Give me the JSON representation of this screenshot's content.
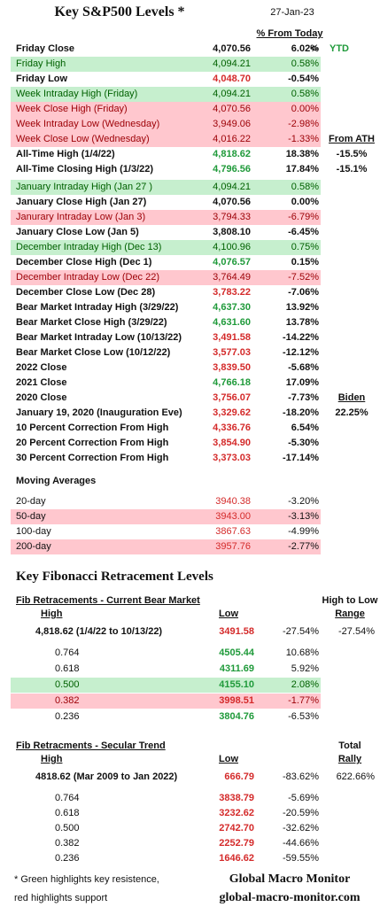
{
  "header": {
    "title": "Key S&P500 Levels *",
    "date": "27-Jan-23",
    "column_header": "% From Today"
  },
  "levels": [
    {
      "label": "Friday Close",
      "value": "4,070.56",
      "change": "6.02%",
      "notes": [
        "<-",
        "YTD"
      ]
    },
    {
      "label": "Friday High",
      "value": "4,094.21",
      "change": "0.58%",
      "highlight": "green"
    },
    {
      "label": "Friday Low",
      "value": "4,048.70",
      "change": "-0.54%",
      "value_color": "red"
    },
    {
      "label": "Week Intraday High (Friday)",
      "value": "4,094.21",
      "change": "0.58%",
      "highlight": "green"
    },
    {
      "label": "Week Close High  (Friday)",
      "value": "4,070.56",
      "change": "0.00%",
      "highlight": "red"
    },
    {
      "label": "Week Intraday Low (Wednesday)",
      "value": "3,949.06",
      "change": "-2.98%",
      "highlight": "red"
    },
    {
      "label": "Week Close Low (Wednesday)",
      "value": "4,016.22",
      "change": "-1.33%",
      "highlight": "red",
      "notes": [
        "From ATH"
      ],
      "note_underline": true
    },
    {
      "label": "All-Time High (1/4/22)",
      "value": "4,818.62",
      "change": "18.38%",
      "value_color": "green",
      "notes": [
        "-15.5%"
      ]
    },
    {
      "label": "All-Time Closing High (1/3/22)",
      "value": "4,796.56",
      "change": "17.84%",
      "value_color": "green",
      "notes": [
        "-15.1%"
      ]
    },
    {
      "label": "January Intraday High (Jan 27 )",
      "value": "4,094.21",
      "change": "0.58%",
      "highlight": "green"
    },
    {
      "label": "January Close High  (Jan 27)",
      "value": "4,070.56",
      "change": "0.00%"
    },
    {
      "label": "Janurary Intraday Low (Jan 3)",
      "value": "3,794.33",
      "change": "-6.79%",
      "highlight": "red"
    },
    {
      "label": "January Close Low  (Jan 5)",
      "value": "3,808.10",
      "change": "-6.45%"
    },
    {
      "label": "December Intraday High (Dec 13)",
      "value": "4,100.96",
      "change": "0.75%",
      "highlight": "green"
    },
    {
      "label": "December Close High  (Dec 1)",
      "value": "4,076.57",
      "change": "0.15%",
      "value_color": "green"
    },
    {
      "label": "December Intraday Low (Dec 22)",
      "value": "3,764.49",
      "change": "-7.52%",
      "highlight": "red"
    },
    {
      "label": "December Close Low  (Dec 28)",
      "value": "3,783.22",
      "change": "-7.06%",
      "value_color": "red"
    },
    {
      "label": "Bear Market Intraday High (3/29/22)",
      "value": "4,637.30",
      "change": "13.92%",
      "value_color": "green"
    },
    {
      "label": "Bear Market Close High (3/29/22)",
      "value": "4,631.60",
      "change": "13.78%",
      "value_color": "green"
    },
    {
      "label": "Bear Market Intraday Low (10/13/22)",
      "value": "3,491.58",
      "change": "-14.22%",
      "value_color": "red"
    },
    {
      "label": "Bear Market Close Low (10/12/22)",
      "value": "3,577.03",
      "change": "-12.12%",
      "value_color": "red"
    },
    {
      "label": "2022 Close",
      "value": "3,839.50",
      "change": "-5.68%",
      "value_color": "red"
    },
    {
      "label": "2021 Close",
      "value": "4,766.18",
      "change": "17.09%",
      "value_color": "green"
    },
    {
      "label": "2020 Close",
      "value": "3,756.07",
      "change": "-7.73%",
      "value_color": "red",
      "notes": [
        "Biden"
      ],
      "note_underline": true
    },
    {
      "label": "January 19, 2020 (Inauguration Eve)",
      "value": "3,329.62",
      "change": "-18.20%",
      "value_color": "red",
      "notes": [
        "22.25%"
      ]
    },
    {
      "label": "10 Percent Correction From High",
      "value": "4,336.76",
      "change": "6.54%",
      "value_color": "red"
    },
    {
      "label": "20 Percent Correction From High",
      "value": "3,854.90",
      "change": "-5.30%",
      "value_color": "red"
    },
    {
      "label": "30 Percent Correction From High",
      "value": "3,373.03",
      "change": "-17.14%",
      "value_color": "red"
    }
  ],
  "moving_averages": {
    "title": "Moving Averages",
    "rows": [
      {
        "label": "20-day",
        "value": "3940.38",
        "change": "-3.20%",
        "value_color": "red"
      },
      {
        "label": "50-day",
        "value": "3943.00",
        "change": "-3.13%",
        "value_color": "red",
        "highlight": "red"
      },
      {
        "label": "100-day",
        "value": "3867.63",
        "change": "-4.99%",
        "value_color": "red"
      },
      {
        "label": "200-day",
        "value": "3957.76",
        "change": "-2.77%",
        "value_color": "red",
        "highlight": "red"
      }
    ]
  },
  "fibonacci": {
    "title": "Key Fibonacci Retracement Levels",
    "sections": [
      {
        "title": "Fib Retracements - Current Bear Market",
        "right_header": [
          "High to Low",
          "Range"
        ],
        "high_header": "High",
        "low_header": "Low",
        "summary": {
          "label": "4,818.62 (1/4/22 to 10/13/22)",
          "low": "3491.58",
          "change": "-27.54%",
          "range": "-27.54%"
        },
        "rows": [
          {
            "ratio": "0.764",
            "level": "4505.44",
            "change": "10.68%",
            "level_color": "green"
          },
          {
            "ratio": "0.618",
            "level": "4311.69",
            "change": "5.92%",
            "level_color": "green"
          },
          {
            "ratio": "0.500",
            "level": "4155.10",
            "change": "2.08%",
            "level_color": "green",
            "highlight": "green"
          },
          {
            "ratio": "0.382",
            "level": "3998.51",
            "change": "-1.77%",
            "level_color": "red",
            "highlight": "red"
          },
          {
            "ratio": "0.236",
            "level": "3804.76",
            "change": "-6.53%",
            "level_color": "green"
          }
        ]
      },
      {
        "title": "Fib Retracments - Secular Trend",
        "right_header": [
          "Total",
          "Rally"
        ],
        "high_header": "High",
        "low_header": "Low",
        "summary": {
          "label": "4818.62 (Mar 2009  to Jan 2022)",
          "low": "666.79",
          "change": "-83.62%",
          "range": "622.66%"
        },
        "rows": [
          {
            "ratio": "0.764",
            "level": "3838.79",
            "change": "-5.69%",
            "level_color": "red"
          },
          {
            "ratio": "0.618",
            "level": "3232.62",
            "change": "-20.59%",
            "level_color": "red"
          },
          {
            "ratio": "0.500",
            "level": "2742.70",
            "change": "-32.62%",
            "level_color": "red"
          },
          {
            "ratio": "0.382",
            "level": "2252.79",
            "change": "-44.66%",
            "level_color": "red"
          },
          {
            "ratio": "0.236",
            "level": "1646.62",
            "change": "-59.55%",
            "level_color": "red"
          }
        ]
      }
    ]
  },
  "footer": {
    "note": [
      "* Green highlights key resistence,",
      "red highlights support"
    ],
    "brand": "Global Macro Monitor",
    "url": "global-macro-monitor.com"
  }
}
